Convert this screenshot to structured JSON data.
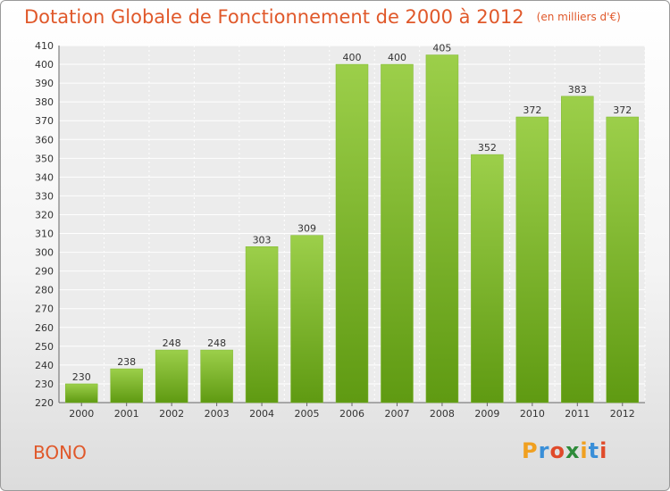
{
  "header": {
    "title": "Dotation Globale de Fonctionnement de 2000 à 2012",
    "subtitle": "(en milliers d'€)"
  },
  "footer": {
    "commune": "BONO",
    "logo": "Proxiti",
    "logo_colors": [
      "#f0a020",
      "#3a8fd8",
      "#e04a2a",
      "#2e8b3a",
      "#f0a020",
      "#3a8fd8",
      "#e04a2a"
    ]
  },
  "chart_data": {
    "type": "bar",
    "categories": [
      "2000",
      "2001",
      "2002",
      "2003",
      "2004",
      "2005",
      "2006",
      "2007",
      "2008",
      "2009",
      "2010",
      "2011",
      "2012"
    ],
    "values": [
      230,
      238,
      248,
      248,
      303,
      309,
      400,
      400,
      405,
      352,
      372,
      383,
      372
    ],
    "ylim": [
      220,
      410
    ],
    "ytick_step": 10,
    "grid": true,
    "bar_color_top": "#9ccf4a",
    "bar_color_bottom": "#5f9a12"
  }
}
